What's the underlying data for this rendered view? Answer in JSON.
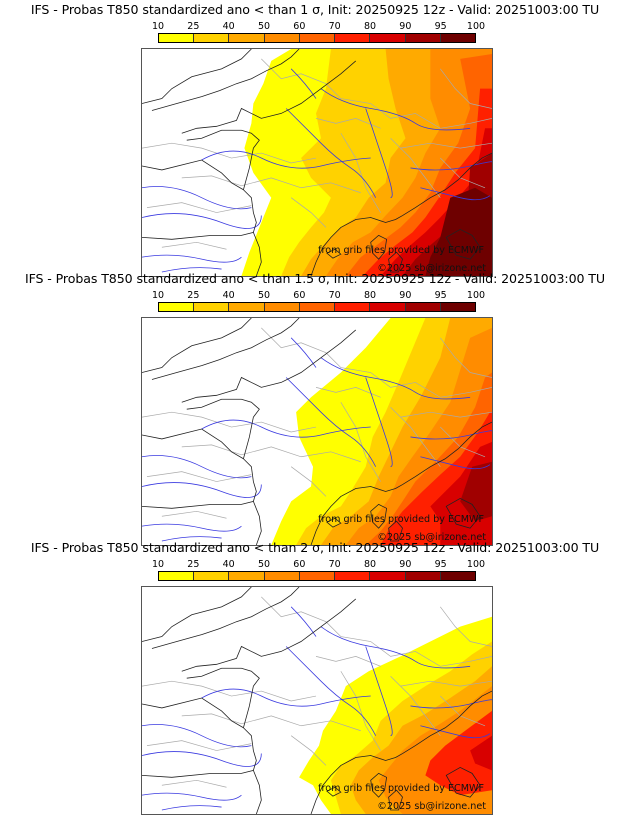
{
  "panels": [
    {
      "title": "IFS - Probas T850  standardized ano < than 1 σ, Init: 20250925 12z - Valid: 20251003:00 TU",
      "threshold_sigma": "1",
      "credit_source": "from grib files provided by ECMWF",
      "credit_copyright": "©2025 sb@irizone.net"
    },
    {
      "title": "IFS - Probas T850  standardized ano < than 1.5 σ, Init: 20250925 12z - Valid: 20251003:00 TU",
      "threshold_sigma": "1.5",
      "credit_source": "from grib files provided by ECMWF",
      "credit_copyright": "©2025 sb@irizone.net"
    },
    {
      "title": "IFS - Probas T850  standardized ano < than 2 σ, Init: 20250925 12z - Valid: 20251003:00 TU",
      "threshold_sigma": "2",
      "credit_source": "from grib files provided by ECMWF",
      "credit_copyright": "©2025 sb@irizone.net"
    }
  ],
  "colorbar": {
    "ticks": [
      "10",
      "25",
      "40",
      "50",
      "60",
      "70",
      "80",
      "90",
      "95",
      "100"
    ],
    "colors": [
      "#ffff00",
      "#ffd200",
      "#ffaa00",
      "#ff8c00",
      "#ff6400",
      "#ff2000",
      "#d80000",
      "#a00000",
      "#6e0000"
    ]
  },
  "map_colors": {
    "land": "#ffffff",
    "coast": "#222222",
    "border": "#aaaaaa",
    "river": "#3a3ae0"
  }
}
